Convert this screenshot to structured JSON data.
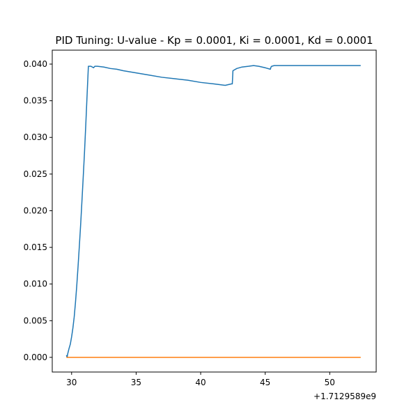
{
  "chart_data": {
    "type": "line",
    "title": "PID Tuning: U-value - Kp = 0.0001, Ki = 0.0001, Kd = 0.0001",
    "xlabel": "",
    "ylabel": "",
    "x_offset_label": "+1.7129589e9",
    "xlim": [
      28.5,
      53.6
    ],
    "ylim": [
      -0.002,
      0.0419
    ],
    "x_ticks": [
      30,
      35,
      40,
      45,
      50
    ],
    "x_tick_labels": [
      "30",
      "35",
      "40",
      "45",
      "50"
    ],
    "y_ticks": [
      0.0,
      0.005,
      0.01,
      0.015,
      0.02,
      0.025,
      0.03,
      0.035,
      0.04
    ],
    "y_tick_labels": [
      "0.000",
      "0.005",
      "0.010",
      "0.015",
      "0.020",
      "0.025",
      "0.030",
      "0.035",
      "0.040"
    ],
    "grid": false,
    "series": [
      {
        "color": "#1f77b4",
        "x": [
          29.6,
          29.65,
          29.7,
          29.8,
          29.9,
          30.0,
          30.1,
          30.2,
          30.3,
          30.4,
          30.5,
          30.6,
          30.7,
          30.8,
          30.9,
          31.0,
          31.1,
          31.2,
          31.3,
          31.4,
          31.5,
          31.6,
          31.7,
          31.8,
          32.0,
          32.5,
          33.0,
          33.5,
          34.0,
          35.0,
          36.0,
          37.0,
          38.0,
          39.0,
          40.0,
          41.0,
          41.9,
          42.4,
          42.45,
          42.5,
          42.8,
          43.2,
          43.7,
          44.1,
          44.5,
          45.0,
          45.4,
          45.45,
          45.5,
          45.7,
          46.0,
          47.0,
          48.0,
          49.0,
          50.0,
          51.0,
          52.0,
          52.4
        ],
        "y": [
          0.0003,
          0.0,
          0.0005,
          0.0012,
          0.0018,
          0.0028,
          0.004,
          0.0055,
          0.0075,
          0.0098,
          0.0124,
          0.0152,
          0.0181,
          0.0213,
          0.0246,
          0.028,
          0.0318,
          0.0358,
          0.0397,
          0.0397,
          0.0397,
          0.0396,
          0.0395,
          0.0397,
          0.0397,
          0.0396,
          0.0394,
          0.0393,
          0.0391,
          0.0388,
          0.0385,
          0.0382,
          0.038,
          0.0378,
          0.0375,
          0.0373,
          0.0371,
          0.0373,
          0.0373,
          0.0391,
          0.0394,
          0.0396,
          0.0397,
          0.0398,
          0.0397,
          0.0395,
          0.0393,
          0.0396,
          0.0397,
          0.0398,
          0.0398,
          0.0398,
          0.0398,
          0.0398,
          0.0398,
          0.0398,
          0.0398,
          0.0398
        ]
      },
      {
        "color": "#ff7f0e",
        "x": [
          29.6,
          52.4
        ],
        "y": [
          0.0,
          0.0
        ]
      }
    ]
  }
}
